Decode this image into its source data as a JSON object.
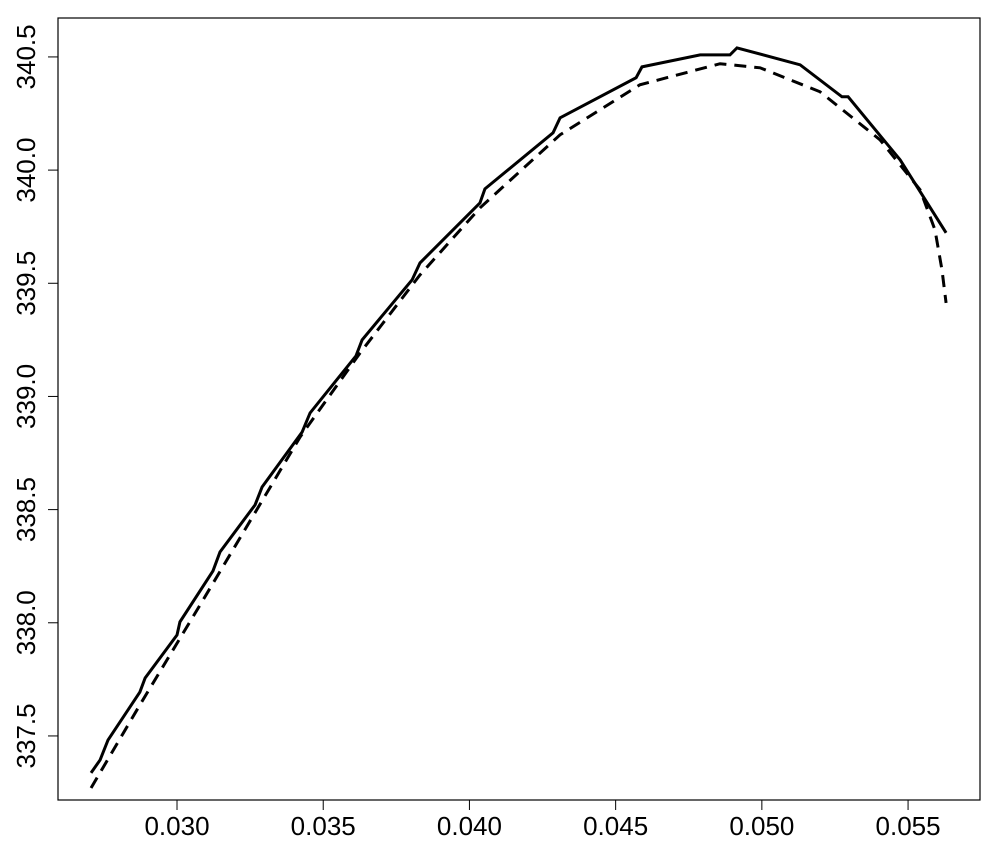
{
  "chart_data": {
    "type": "line",
    "xlim": [
      0.02593,
      0.05746
    ],
    "ylim": [
      337.217,
      340.672
    ],
    "xticks": [
      {
        "value": 0.03,
        "label": "0.030"
      },
      {
        "value": 0.035,
        "label": "0.035"
      },
      {
        "value": 0.04,
        "label": "0.040"
      },
      {
        "value": 0.045,
        "label": "0.045"
      },
      {
        "value": 0.05,
        "label": "0.050"
      },
      {
        "value": 0.055,
        "label": "0.055"
      }
    ],
    "yticks": [
      337.5,
      {
        "value": 338,
        "label": "338.0"
      },
      338.5,
      {
        "value": 339,
        "label": "339.0"
      },
      339.5,
      {
        "value": 340,
        "label": "340.0"
      },
      340.5
    ],
    "series": [
      {
        "color": "#000000",
        "dash": "solid",
        "x": [
          0.02706,
          0.02737,
          0.02764,
          0.02873,
          0.02891,
          0.03,
          0.0301,
          0.03123,
          0.03147,
          0.03267,
          0.03291,
          0.03428,
          0.03455,
          0.03612,
          0.03633,
          0.03804,
          0.03831,
          0.04036,
          0.04053,
          0.04286,
          0.0431,
          0.0457,
          0.0459,
          0.04789,
          0.04891,
          0.04915,
          0.05131,
          0.05274,
          0.05295,
          0.05473,
          0.0563
        ],
        "values": [
          337.337,
          337.394,
          337.482,
          337.694,
          337.756,
          337.946,
          338.004,
          338.229,
          338.313,
          338.521,
          338.6,
          338.843,
          338.927,
          339.179,
          339.25,
          339.515,
          339.59,
          339.855,
          339.917,
          340.165,
          340.231,
          340.408,
          340.456,
          340.509,
          340.509,
          340.54,
          340.465,
          340.324,
          340.324,
          340.045,
          339.723
        ]
      },
      {
        "color": "#000000",
        "dash": "dashed",
        "x": [
          0.02706,
          0.02873,
          0.03079,
          0.03421,
          0.03626,
          0.03831,
          0.04036,
          0.0431,
          0.04583,
          0.04857,
          0.04994,
          0.05199,
          0.05404,
          0.05541,
          0.05592,
          0.05616,
          0.0563
        ],
        "values": [
          337.27,
          337.637,
          338.079,
          338.821,
          339.192,
          339.537,
          339.833,
          340.156,
          340.377,
          340.47,
          340.452,
          340.346,
          340.134,
          339.913,
          339.736,
          339.559,
          339.413
        ]
      }
    ]
  }
}
